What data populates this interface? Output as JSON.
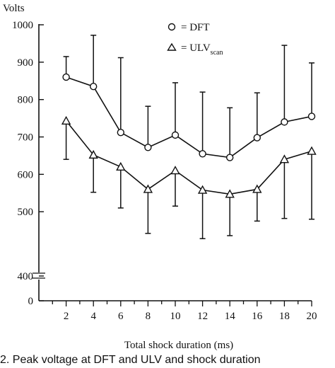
{
  "chart_data": {
    "type": "line",
    "ylabel": "Volts",
    "xlabel": "Total shock duration (ms)",
    "x": [
      2,
      4,
      6,
      8,
      10,
      12,
      14,
      16,
      18,
      20
    ],
    "xlim": [
      0,
      20
    ],
    "ylim": [
      0,
      1000
    ],
    "y_axis_break": "between 0 and 400",
    "yticks": [
      0,
      400,
      500,
      600,
      700,
      800,
      900,
      1000
    ],
    "grid": false,
    "legend_position": "top-right",
    "series": [
      {
        "name": "= DFT",
        "marker": "circle",
        "values": [
          860,
          835,
          712,
          672,
          705,
          655,
          645,
          698,
          740,
          755
        ],
        "error_upper": [
          915,
          972,
          912,
          782,
          845,
          820,
          778,
          818,
          945,
          898
        ]
      },
      {
        "name": "= ULV",
        "name_subscript": "scan",
        "marker": "triangle",
        "values": [
          743,
          652,
          620,
          560,
          610,
          558,
          547,
          560,
          640,
          662
        ],
        "error_lower": [
          640,
          552,
          510,
          442,
          515,
          428,
          436,
          475,
          482,
          480
        ]
      }
    ]
  },
  "caption": {
    "text": "2. Peak voltage at DFT and ULV and shock duration"
  }
}
